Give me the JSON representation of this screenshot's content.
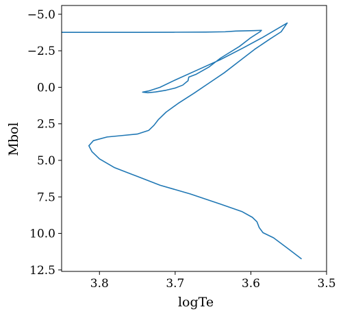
{
  "chart_data": {
    "type": "line",
    "title": "",
    "xlabel": "logTe",
    "ylabel": "Mbol",
    "xlim": [
      3.85,
      3.5
    ],
    "ylim": [
      12.6,
      -5.6
    ],
    "x_inverted": true,
    "y_inverted": true,
    "grid": false,
    "xticks": [
      3.8,
      3.7,
      3.6,
      3.5
    ],
    "xtick_labels": [
      "3.8",
      "3.7",
      "3.6",
      "3.5"
    ],
    "yticks": [
      -5.0,
      -2.5,
      0.0,
      2.5,
      5.0,
      7.5,
      10.0,
      12.5
    ],
    "ytick_labels": [
      "−5.0",
      "−2.5",
      "0.0",
      "2.5",
      "5.0",
      "7.5",
      "10.0",
      "12.5"
    ],
    "series": [
      {
        "color": "#1f77b4",
        "points": [
          [
            3.533,
            11.75
          ],
          [
            3.552,
            11.0
          ],
          [
            3.57,
            10.3
          ],
          [
            3.584,
            9.95
          ],
          [
            3.589,
            9.6
          ],
          [
            3.592,
            9.2
          ],
          [
            3.598,
            8.9
          ],
          [
            3.612,
            8.5
          ],
          [
            3.64,
            8.0
          ],
          [
            3.68,
            7.3
          ],
          [
            3.72,
            6.7
          ],
          [
            3.75,
            6.1
          ],
          [
            3.78,
            5.5
          ],
          [
            3.8,
            4.9
          ],
          [
            3.81,
            4.4
          ],
          [
            3.814,
            4.0
          ],
          [
            3.808,
            3.65
          ],
          [
            3.79,
            3.4
          ],
          [
            3.77,
            3.3
          ],
          [
            3.75,
            3.2
          ],
          [
            3.735,
            2.95
          ],
          [
            3.728,
            2.6
          ],
          [
            3.722,
            2.2
          ],
          [
            3.712,
            1.7
          ],
          [
            3.696,
            1.1
          ],
          [
            3.675,
            0.4
          ],
          [
            3.655,
            -0.3
          ],
          [
            3.635,
            -1.0
          ],
          [
            3.615,
            -1.8
          ],
          [
            3.595,
            -2.6
          ],
          [
            3.575,
            -3.3
          ],
          [
            3.56,
            -3.8
          ],
          [
            3.552,
            -4.4
          ],
          [
            3.585,
            -3.4
          ],
          [
            3.61,
            -2.7
          ],
          [
            3.64,
            -1.9
          ],
          [
            3.67,
            -1.2
          ],
          [
            3.7,
            -0.5
          ],
          [
            3.72,
            0.0
          ],
          [
            3.735,
            0.25
          ],
          [
            3.743,
            0.33
          ],
          [
            3.736,
            0.37
          ],
          [
            3.726,
            0.32
          ],
          [
            3.712,
            0.2
          ],
          [
            3.7,
            0.05
          ],
          [
            3.69,
            -0.15
          ],
          [
            3.683,
            -0.45
          ],
          [
            3.682,
            -0.7
          ],
          [
            3.672,
            -0.9
          ],
          [
            3.655,
            -1.4
          ],
          [
            3.64,
            -2.0
          ],
          [
            3.615,
            -2.8
          ],
          [
            3.6,
            -3.4
          ],
          [
            3.588,
            -3.8
          ],
          [
            3.586,
            -3.9
          ],
          [
            3.596,
            -3.88
          ],
          [
            3.62,
            -3.85
          ],
          [
            3.634,
            -3.8
          ],
          [
            3.66,
            -3.78
          ],
          [
            3.7,
            -3.77
          ],
          [
            3.75,
            -3.76
          ],
          [
            3.8,
            -3.76
          ],
          [
            3.85,
            -3.76
          ]
        ]
      }
    ]
  }
}
